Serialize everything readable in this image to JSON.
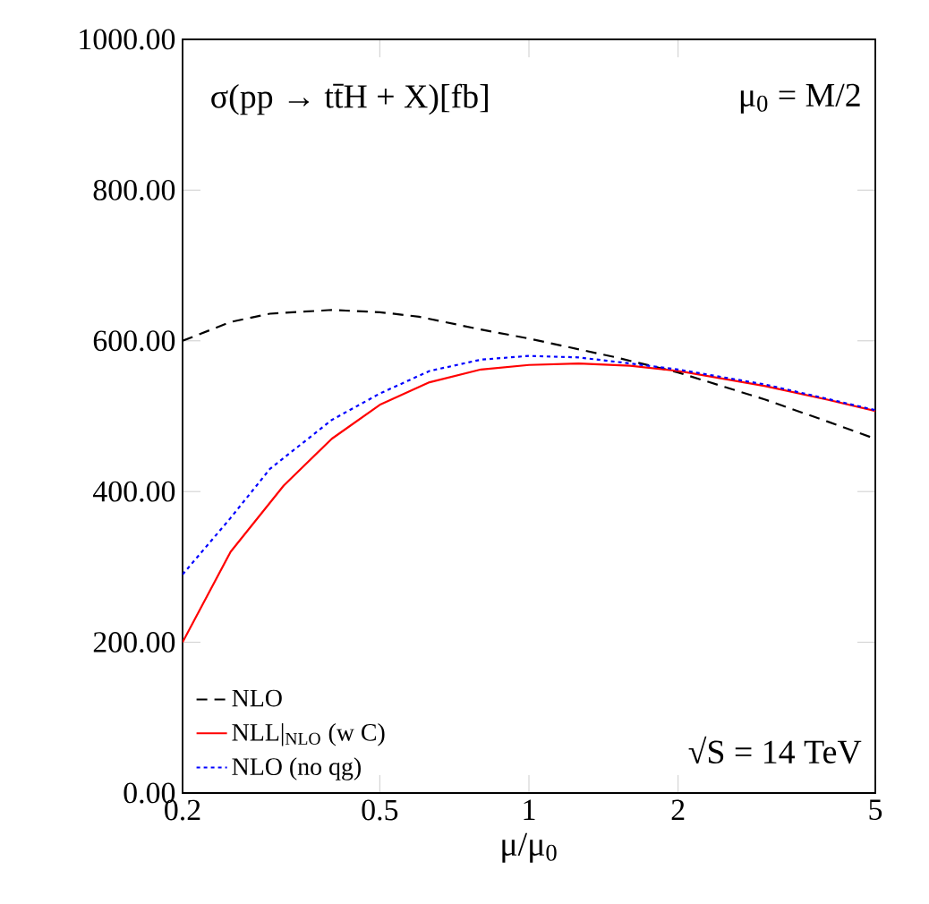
{
  "chart_data": {
    "type": "line",
    "xlabel": "μ/μ$_{0}$",
    "annotations": [
      "σ(pp → tt̄H + X)[fb]",
      "μ$_{0}$ = M/2",
      "√S = 14 TeV"
    ],
    "log": "x",
    "xlim": [
      0.2,
      5
    ],
    "xticks": [
      0.2,
      0.5,
      1,
      2,
      5
    ],
    "ylim": [
      0,
      1000
    ],
    "yticks": [
      {
        "value": 0,
        "label": "0.00"
      },
      {
        "value": 200,
        "label": "200.00"
      },
      {
        "value": 400,
        "label": "400.00"
      },
      {
        "value": 600,
        "label": "600.00"
      },
      {
        "value": 800,
        "label": "800.00"
      },
      {
        "value": 1000,
        "label": "1000.00"
      }
    ],
    "grid": false,
    "legend": "bottom left",
    "marker": "none",
    "series": [
      {
        "name": "NLO",
        "color": "#000000",
        "line_style": "dashed",
        "x": [
          0.2,
          0.25,
          0.3,
          0.4,
          0.5,
          0.6,
          0.8,
          1,
          1.5,
          2,
          3,
          4,
          5
        ],
        "values": [
          600,
          625,
          636,
          641,
          638,
          632,
          615,
          603,
          578,
          558,
          522,
          493,
          470
        ]
      },
      {
        "name": "NLL|$_{NLO}$ (w C)",
        "color": "#ff0000",
        "line_style": "solid",
        "x": [
          0.2,
          0.25,
          0.32,
          0.4,
          0.5,
          0.63,
          0.8,
          1,
          1.26,
          1.6,
          2,
          3,
          4,
          5
        ],
        "values": [
          200,
          320,
          408,
          470,
          515,
          545,
          562,
          568,
          570,
          567,
          560,
          540,
          522,
          507
        ]
      },
      {
        "name": "NLO (no qg)",
        "color": "#0000ff",
        "line_style": "dotted",
        "x": [
          0.2,
          0.25,
          0.3,
          0.4,
          0.5,
          0.63,
          0.8,
          1,
          1.26,
          1.6,
          2,
          3,
          4,
          5
        ],
        "values": [
          290,
          365,
          430,
          495,
          530,
          560,
          575,
          580,
          578,
          570,
          562,
          542,
          523,
          508
        ]
      }
    ]
  }
}
